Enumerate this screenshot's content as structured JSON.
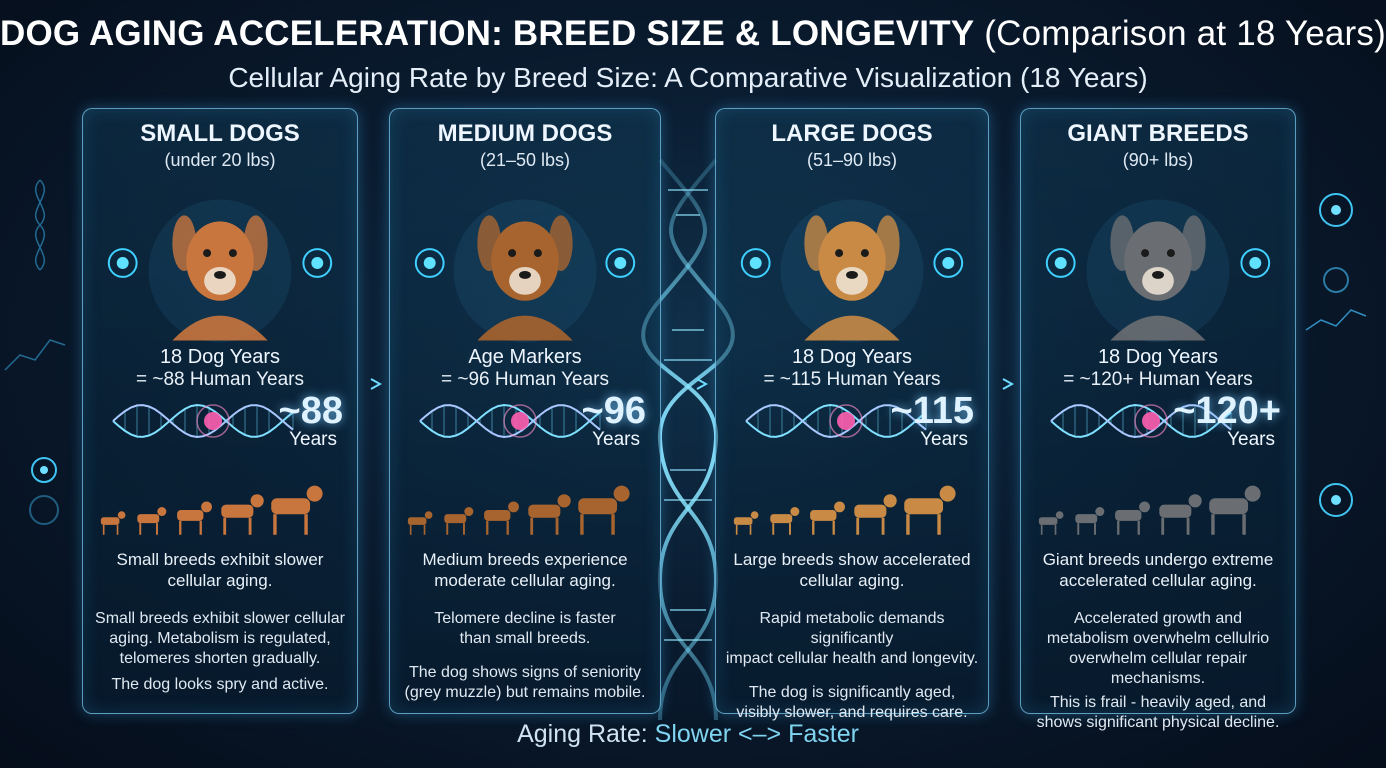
{
  "header": {
    "title_bold": "DOG AGING ACCELERATION: BREED SIZE & LONGEVITY",
    "title_rest": "(Comparison at 18 Years)",
    "subtitle": "Cellular Aging Rate by Breed Size: A Comparative Visualization (18 Years)"
  },
  "panels": [
    {
      "heading": "SMALL DOGS",
      "range": "(under 20 lbs)",
      "line1": "18 Dog Years",
      "line2": "= ~88 Human Years",
      "big": "~88",
      "years": "Years",
      "summary": [
        "Small breeds exhibit slower",
        "cellular aging."
      ],
      "detail": [
        "Small breeds exhibit slower cellular",
        "aging. Metabolism is regulated,",
        "telomeres shorten gradually."
      ],
      "note": [
        "The dog looks spry and active."
      ],
      "dog_color": "#c9763e"
    },
    {
      "heading": "MEDIUM DOGS",
      "range": "(21–50 lbs)",
      "line1": "Age Markers",
      "line2": "= ~96 Human Years",
      "big": "~96",
      "years": "Years",
      "summary": [
        "Medium breeds experience",
        "moderate cellular aging."
      ],
      "detail": [
        "Telomere decline is faster",
        "than small breeds."
      ],
      "note": [
        "The dog shows signs of seniority",
        "(grey muzzle) but remains mobile."
      ],
      "dog_color": "#a8642e"
    },
    {
      "heading": "LARGE DOGS",
      "range": "(51–90 lbs)",
      "line1": "18 Dog Years",
      "line2": "= ~115 Human Years",
      "big": "~115",
      "years": "Years",
      "summary": [
        "Large breeds show accelerated",
        "cellular aging."
      ],
      "detail": [
        "Rapid metabolic demands significantly",
        "impact cellular health and longevity."
      ],
      "note": [
        "The dog is significantly aged,",
        "visibly slower, and requires care."
      ],
      "dog_color": "#c88a45"
    },
    {
      "heading": "GIANT BREEDS",
      "range": "(90+ lbs)",
      "line1": "18 Dog Years",
      "line2": "= ~120+ Human Years",
      "big": "~120+",
      "years": "Years",
      "summary": [
        "Giant breeds undergo extreme",
        "accelerated cellular aging."
      ],
      "detail": [
        "Accelerated growth and",
        "metabolism overwhelm cellulrio",
        "overwhelm cellular repair mechanisms."
      ],
      "note": [
        "This is frail - heavily aged, and",
        "shows significant physical decline."
      ],
      "dog_color": "#6a6e72"
    }
  ],
  "scale": {
    "label": "Aging Rate: ",
    "value": "Slower <–> Faster"
  },
  "colors": {
    "background": "#071426",
    "panel_border": "#78c8f0",
    "accent": "#7fd4f0",
    "helix_pink": "#ff5fb0",
    "helix_cyan": "#4fd0ff"
  },
  "icons": [
    "dna-helix-icon",
    "glow-node-icon",
    "dog-silhouette-icon",
    "arrow-right-icon"
  ]
}
